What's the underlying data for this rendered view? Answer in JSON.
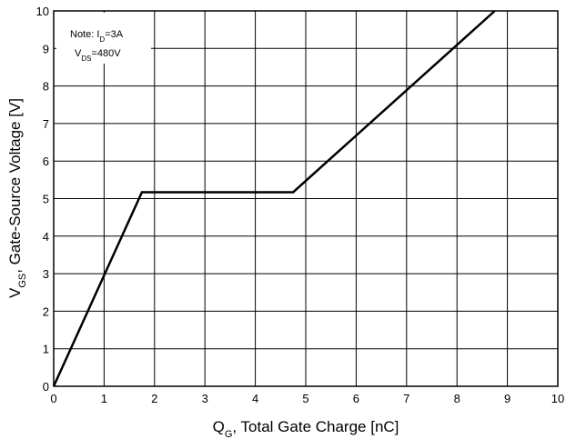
{
  "chart_data": {
    "type": "line",
    "title": "",
    "xlabel": {
      "main": "Q",
      "sub": "G",
      "rest": ", Total Gate Charge [nC]"
    },
    "ylabel": {
      "main": "V",
      "sub": "GS",
      "rest": ", Gate-Source Voltage [V]"
    },
    "xlim": [
      0,
      10
    ],
    "ylim": [
      0,
      10
    ],
    "x_ticks": [
      "0",
      "1",
      "2",
      "3",
      "4",
      "5",
      "6",
      "7",
      "8",
      "9",
      "10"
    ],
    "y_ticks": [
      "0",
      "1",
      "2",
      "3",
      "4",
      "5",
      "6",
      "7",
      "8",
      "9",
      "10"
    ],
    "grid": true,
    "series": [
      {
        "x": [
          0,
          1.75,
          4.75,
          8.75
        ],
        "y": [
          0,
          5.17,
          5.17,
          10
        ],
        "color": "#000000"
      }
    ],
    "annotations": [
      {
        "main": "Note: I",
        "sub": "D",
        "rest": "=3A"
      },
      {
        "main": "V",
        "sub": "DS",
        "rest": "=480V"
      }
    ]
  }
}
